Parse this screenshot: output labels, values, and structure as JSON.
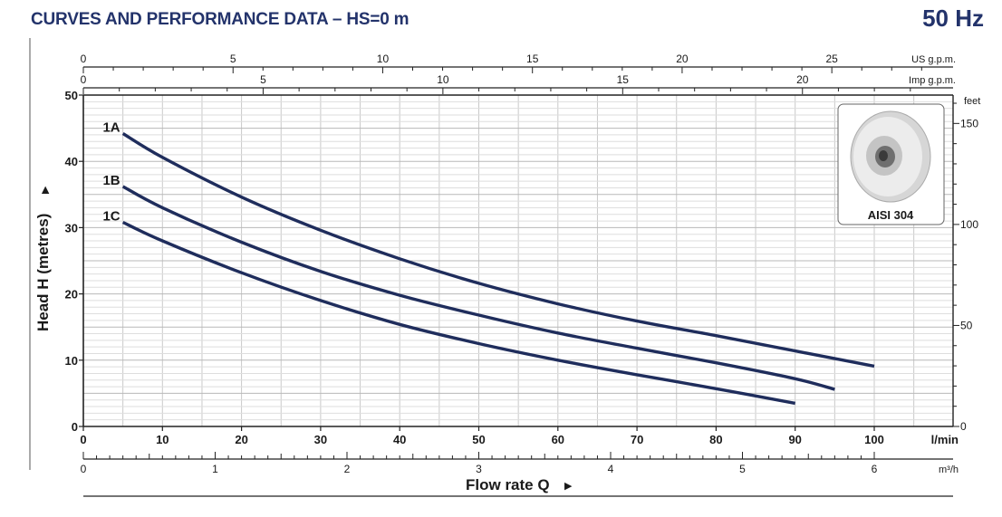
{
  "header": {
    "title": "CURVES AND PERFORMANCE DATA  –  HS=0 m",
    "frequency": "50 Hz"
  },
  "chart_data": {
    "type": "line",
    "xlabel": "Flow rate Q",
    "ylabel": "Head H (metres)",
    "x_unit": "l/min",
    "xlim": [
      0,
      110
    ],
    "ylim": [
      0,
      50
    ],
    "x_ticks": [
      0,
      10,
      20,
      30,
      40,
      50,
      60,
      70,
      80,
      90,
      100
    ],
    "y_ticks": [
      0,
      10,
      20,
      30,
      40,
      50
    ],
    "grid": true,
    "secondary_axes": {
      "us_gpm": {
        "unit": "US g.p.m.",
        "ticks": [
          0,
          5,
          10,
          15,
          20,
          25
        ]
      },
      "imp_gpm": {
        "unit": "Imp g.p.m.",
        "ticks": [
          0,
          5,
          10,
          15,
          20
        ]
      },
      "m3h": {
        "unit": "m³/h",
        "ticks": [
          0,
          1,
          2,
          3,
          4,
          5,
          6
        ]
      },
      "feet": {
        "unit": "feet",
        "ticks": [
          0,
          50,
          100,
          150
        ]
      }
    },
    "series": [
      {
        "name": "1A",
        "x": [
          5,
          10,
          20,
          30,
          40,
          50,
          60,
          70,
          80,
          90,
          100
        ],
        "y": [
          44.2,
          40.6,
          34.6,
          29.6,
          25.3,
          21.6,
          18.5,
          15.9,
          13.7,
          11.4,
          9.1
        ]
      },
      {
        "name": "1B",
        "x": [
          5,
          10,
          20,
          30,
          40,
          50,
          60,
          70,
          80,
          90,
          95
        ],
        "y": [
          36.2,
          33.0,
          27.8,
          23.4,
          19.8,
          16.8,
          14.1,
          11.8,
          9.6,
          7.2,
          5.6
        ]
      },
      {
        "name": "1C",
        "x": [
          5,
          10,
          20,
          30,
          40,
          50,
          60,
          70,
          80,
          90
        ],
        "y": [
          30.8,
          28.0,
          23.2,
          19.0,
          15.4,
          12.5,
          10.0,
          7.8,
          5.7,
          3.5
        ]
      }
    ],
    "series_color": "#1f2d5c"
  },
  "inset": {
    "label": "AISI 304",
    "icon": "impeller-icon"
  }
}
